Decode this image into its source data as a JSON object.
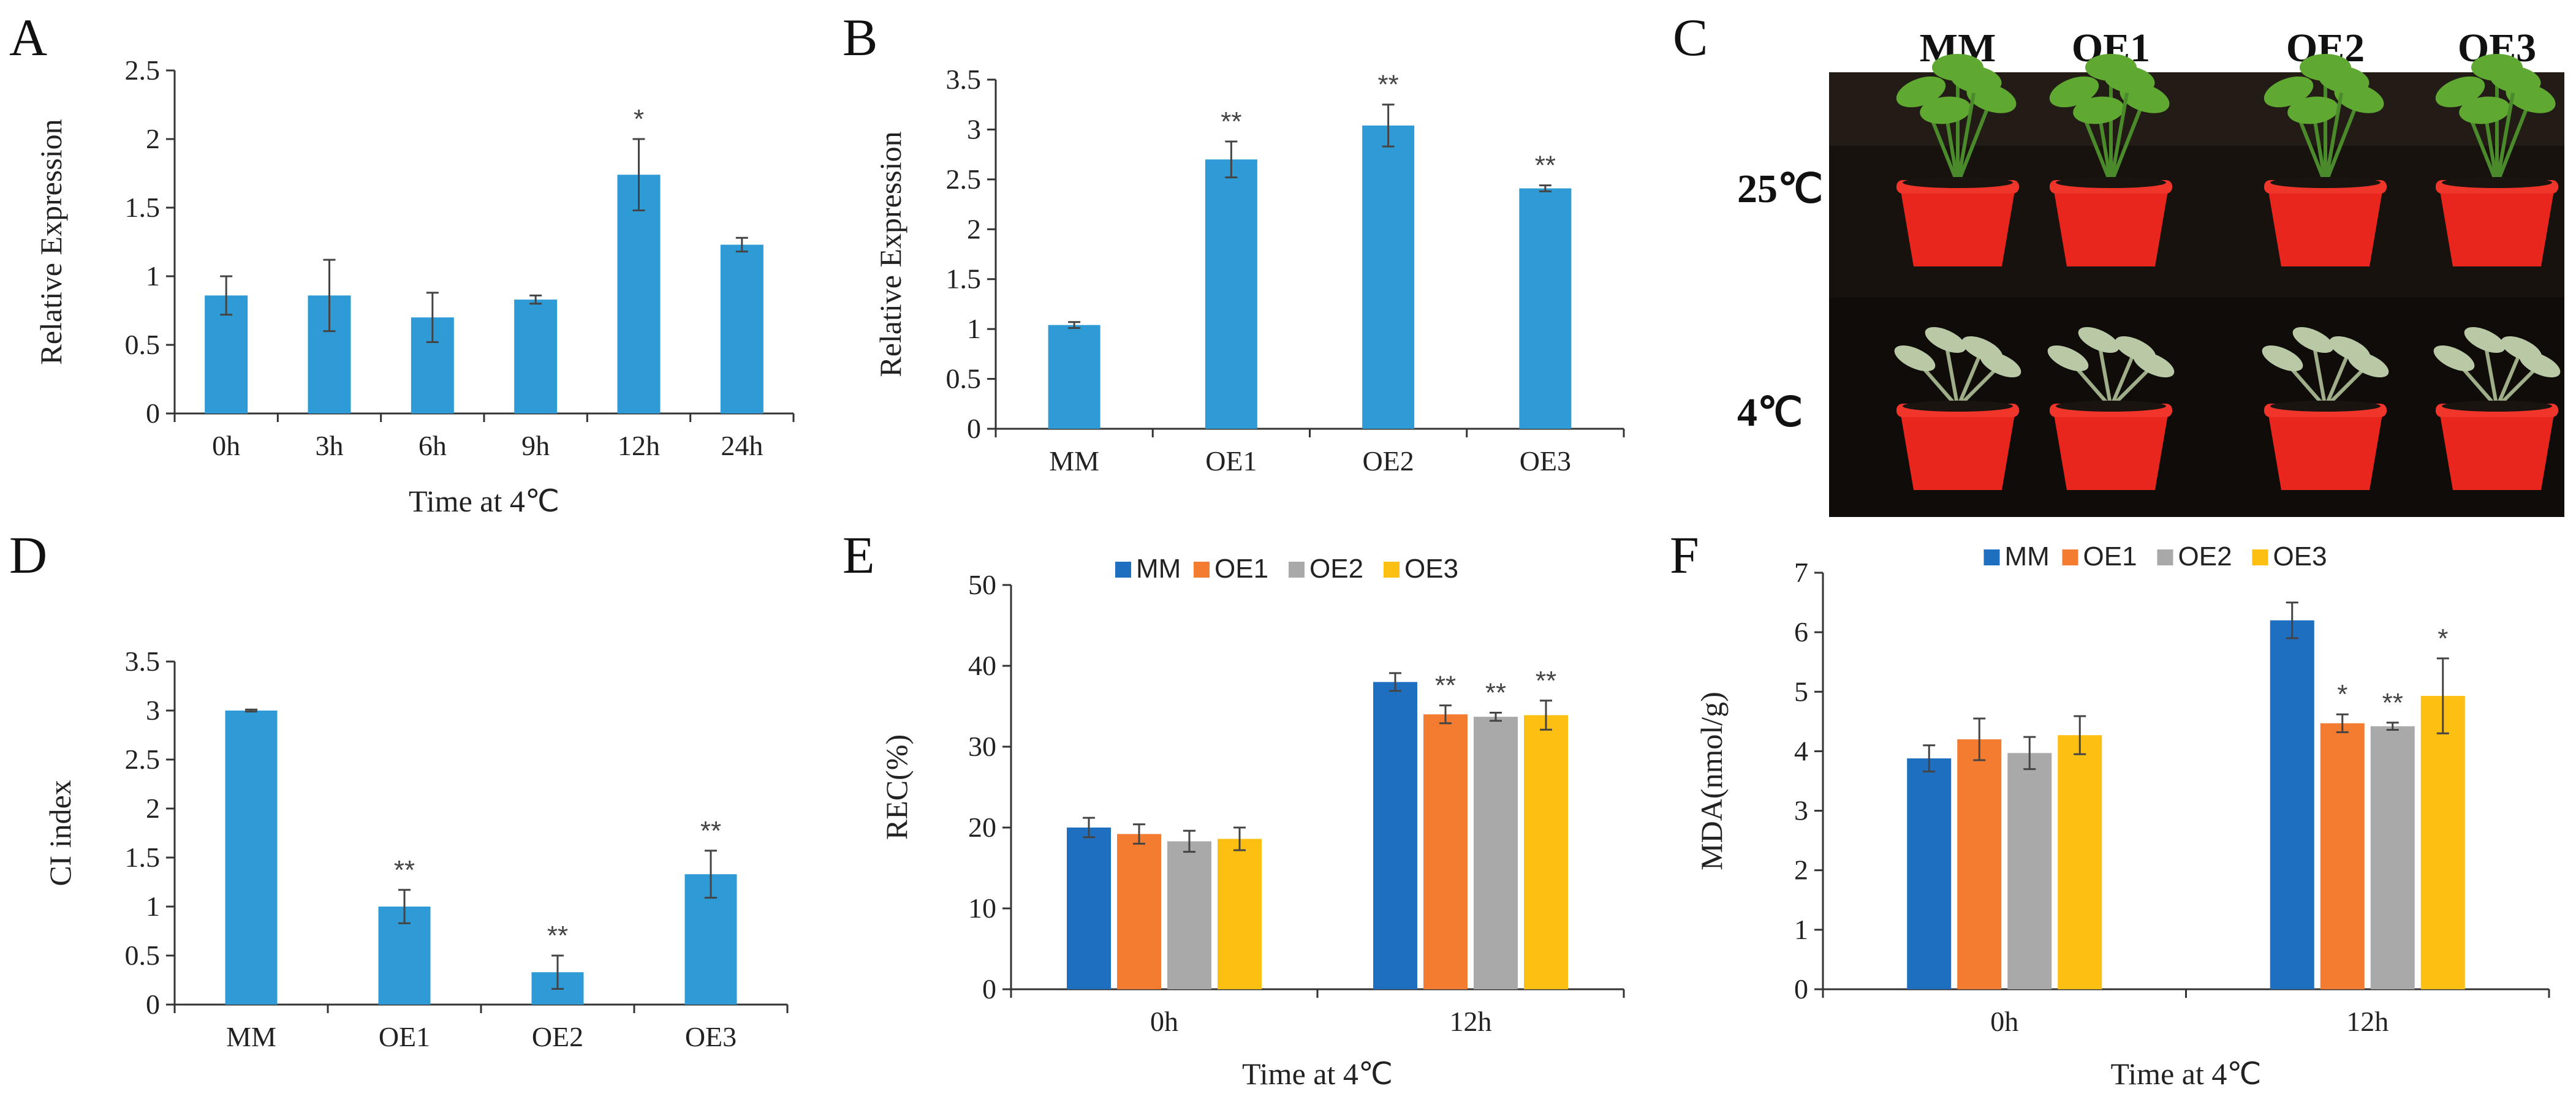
{
  "colors": {
    "single_bar": "#2e9bd6",
    "MM": "#1f6fc0",
    "OE1": "#f47c30",
    "OE2": "#a9a9a9",
    "OE3": "#fdbf11",
    "pot": "#e8261e",
    "leaf": "#5fa832",
    "soil": "#1a1410"
  },
  "photo": {
    "letter": "C",
    "columns": [
      "MM",
      "OE1",
      "OE2",
      "OE3"
    ],
    "rows": [
      "25℃",
      "4℃"
    ]
  },
  "chart_data": [
    {
      "panel": "A",
      "type": "bar",
      "categories": [
        "0h",
        "3h",
        "6h",
        "9h",
        "12h",
        "24h"
      ],
      "values": [
        0.86,
        0.86,
        0.7,
        0.83,
        1.74,
        1.23
      ],
      "errors": [
        0.14,
        0.26,
        0.18,
        0.03,
        0.26,
        0.05
      ],
      "significance": [
        "",
        "",
        "",
        "",
        "*",
        ""
      ],
      "title": "",
      "xlabel": "Time at 4℃",
      "ylabel": "Relative Expression",
      "ylim": [
        0,
        2.5
      ],
      "yticks": [
        0,
        0.5,
        1,
        1.5,
        2,
        2.5
      ],
      "ytick_labels": [
        "0",
        "0.5",
        "1",
        "1.5",
        "2",
        "2.5"
      ]
    },
    {
      "panel": "B",
      "type": "bar",
      "categories": [
        "MM",
        "OE1",
        "OE2",
        "OE3"
      ],
      "values": [
        1.04,
        2.7,
        3.04,
        2.41
      ],
      "errors": [
        0.03,
        0.18,
        0.21,
        0.03
      ],
      "significance": [
        "",
        "**",
        "**",
        "**"
      ],
      "title": "",
      "xlabel": "",
      "ylabel": "Relative Expression",
      "ylim": [
        0,
        3.5
      ],
      "yticks": [
        0,
        0.5,
        1,
        1.5,
        2,
        2.5,
        3,
        3.5
      ],
      "ytick_labels": [
        "0",
        "0.5",
        "1",
        "1.5",
        "2",
        "2.5",
        "3",
        "3.5"
      ]
    },
    {
      "panel": "D",
      "type": "bar",
      "categories": [
        "MM",
        "OE1",
        "OE2",
        "OE3"
      ],
      "values": [
        3.0,
        1.0,
        0.33,
        1.33
      ],
      "errors": [
        0.01,
        0.17,
        0.17,
        0.24
      ],
      "significance": [
        "",
        "**",
        "**",
        "**"
      ],
      "title": "",
      "xlabel": "",
      "ylabel": "CI index",
      "ylim": [
        0,
        3.5
      ],
      "yticks": [
        0,
        0.5,
        1,
        1.5,
        2,
        2.5,
        3,
        3.5
      ],
      "ytick_labels": [
        "0",
        "0.5",
        "1",
        "1.5",
        "2",
        "2.5",
        "3",
        "3.5"
      ]
    },
    {
      "panel": "E",
      "type": "bar",
      "categories": [
        "0h",
        "12h"
      ],
      "series": [
        {
          "name": "MM",
          "values": [
            20.0,
            38.0
          ],
          "errors": [
            1.2,
            1.1
          ],
          "significance": [
            "",
            ""
          ]
        },
        {
          "name": "OE1",
          "values": [
            19.2,
            34.0
          ],
          "errors": [
            1.2,
            1.1
          ],
          "significance": [
            "",
            "**"
          ]
        },
        {
          "name": "OE2",
          "values": [
            18.3,
            33.7
          ],
          "errors": [
            1.3,
            0.5
          ],
          "significance": [
            "",
            "**"
          ]
        },
        {
          "name": "OE3",
          "values": [
            18.6,
            33.9
          ],
          "errors": [
            1.4,
            1.8
          ],
          "significance": [
            "",
            "**"
          ]
        }
      ],
      "title": "",
      "xlabel": "Time at 4℃",
      "ylabel": "REC(%)",
      "ylim": [
        0,
        50
      ],
      "yticks": [
        0,
        10,
        20,
        30,
        40,
        50
      ],
      "ytick_labels": [
        "0",
        "10",
        "20",
        "30",
        "40",
        "50"
      ],
      "legend_position": "top"
    },
    {
      "panel": "F",
      "type": "bar",
      "categories": [
        "0h",
        "12h"
      ],
      "series": [
        {
          "name": "MM",
          "values": [
            3.88,
            6.2
          ],
          "errors": [
            0.22,
            0.3
          ],
          "significance": [
            "",
            ""
          ]
        },
        {
          "name": "OE1",
          "values": [
            4.2,
            4.47
          ],
          "errors": [
            0.35,
            0.15
          ],
          "significance": [
            "",
            "*"
          ]
        },
        {
          "name": "OE2",
          "values": [
            3.97,
            4.42
          ],
          "errors": [
            0.27,
            0.06
          ],
          "significance": [
            "",
            "**"
          ]
        },
        {
          "name": "OE3",
          "values": [
            4.27,
            4.93
          ],
          "errors": [
            0.32,
            0.63
          ],
          "significance": [
            "",
            "*"
          ]
        }
      ],
      "title": "",
      "xlabel": "Time at 4℃",
      "ylabel": "MDA(nmol/g)",
      "ylim": [
        0,
        7
      ],
      "yticks": [
        0,
        1,
        2,
        3,
        4,
        5,
        6,
        7
      ],
      "ytick_labels": [
        "0",
        "1",
        "2",
        "3",
        "4",
        "5",
        "6",
        "7"
      ],
      "legend_position": "top"
    }
  ]
}
